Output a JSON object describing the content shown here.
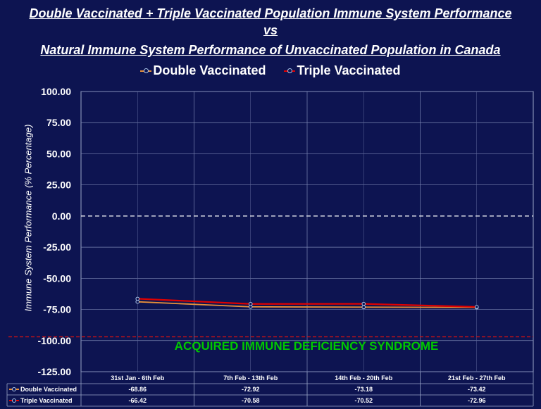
{
  "title": {
    "line1": "Double Vaccinated + Triple Vaccinated Population Immune System Performance",
    "line2": "vs",
    "line3": "Natural Immune System Performance of Unvaccinated Population in Canada"
  },
  "annotation": "ACQUIRED IMMUNE DEFICIENCY SYNDROME",
  "chart_data": {
    "type": "line",
    "ylabel": "Immune System Performance (% Percentage)",
    "xlabel": "",
    "ylim": [
      -125,
      100
    ],
    "y_ticks": [
      "100.00",
      "75.00",
      "50.00",
      "25.00",
      "0.00",
      "-25.00",
      "-50.00",
      "-75.00",
      "-100.00",
      "-125.00"
    ],
    "categories": [
      "31st Jan - 6th Feb",
      "7th Feb - 13th Feb",
      "14th Feb - 20th Feb",
      "21st Feb - 27th Feb"
    ],
    "series": [
      {
        "name": "Double Vaccinated",
        "values": [
          -68.86,
          -72.92,
          -73.18,
          -73.42
        ],
        "labels": [
          "-68.86",
          "-72.92",
          "-73.18",
          "-73.42"
        ],
        "color": "#e8903a"
      },
      {
        "name": "Triple Vaccinated",
        "values": [
          -66.42,
          -70.58,
          -70.52,
          -72.96
        ],
        "labels": [
          "-66.42",
          "-70.58",
          "-70.52",
          "-72.96"
        ],
        "color": "#e00000"
      }
    ],
    "reference_lines": [
      {
        "value": 0,
        "color": "#ffffff",
        "style": "dashed"
      },
      {
        "value": -97,
        "color": "#e01010",
        "style": "dashed"
      }
    ],
    "grid": true,
    "legend": "top-center",
    "data_table": true
  }
}
